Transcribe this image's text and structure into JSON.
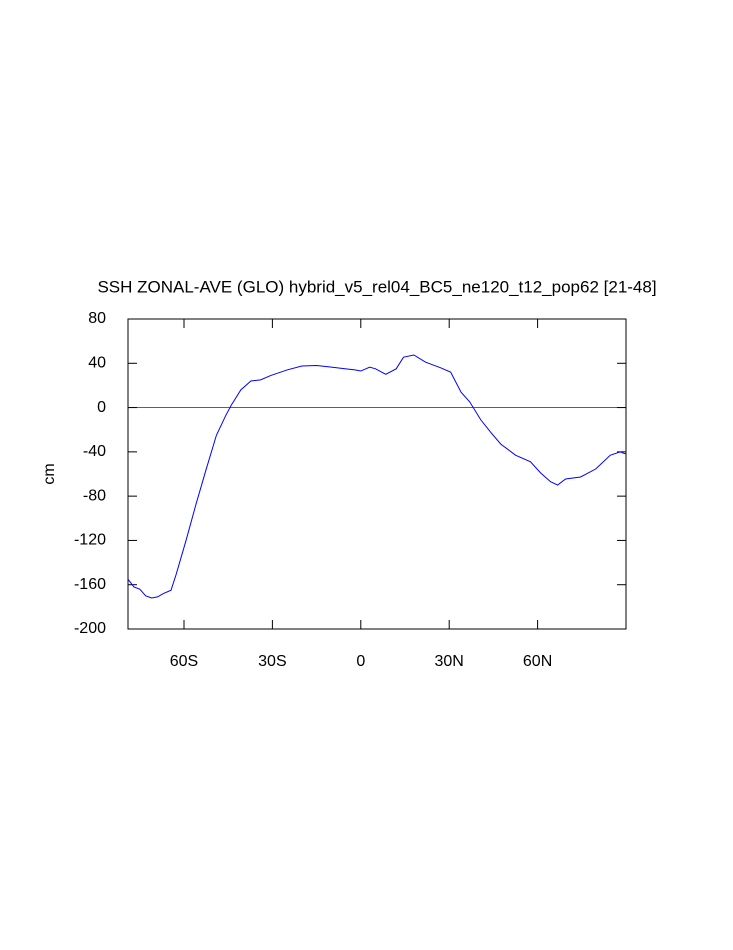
{
  "chart_data": {
    "type": "line",
    "title": "SSH ZONAL-AVE (GLO) hybrid_v5_rel04_BC5_ne120_t12_pop62 [21-48]",
    "ylabel": "cm",
    "xlim": [
      -79,
      90
    ],
    "ylim": [
      -200,
      80
    ],
    "xticks": [
      {
        "value": -60,
        "label": "60S"
      },
      {
        "value": -30,
        "label": "30S"
      },
      0,
      {
        "value": 30,
        "label": "30N"
      },
      {
        "value": 60,
        "label": "60N"
      }
    ],
    "yticks": [
      80,
      40,
      0,
      -40,
      -80,
      -120,
      -160,
      -200
    ],
    "hline": 0,
    "x": [
      -79,
      -77,
      -75,
      -73,
      -71,
      -69,
      -67,
      -64.4,
      -62.7,
      -59.3,
      -56,
      -52.5,
      -49,
      -45.8,
      -44,
      -40.7,
      -37.3,
      -34,
      -30.5,
      -25,
      -20,
      -15,
      -10,
      -5,
      -2,
      0,
      3,
      5,
      8.5,
      12,
      14.5,
      18,
      22,
      27,
      30.5,
      34,
      37,
      40.7,
      44,
      47.5,
      52.5,
      57.6,
      61,
      64.4,
      66.8,
      69.5,
      74.6,
      79.7,
      84.7,
      88,
      90
    ],
    "series": [
      {
        "name": "SSH",
        "color": "#0000ff",
        "values": [
          -155,
          -162,
          -164,
          -170,
          -172,
          -171,
          -168,
          -165,
          -151,
          -120,
          -88,
          -56,
          -25,
          -7,
          2,
          16,
          24,
          25,
          29,
          34,
          37.5,
          38,
          36.5,
          35,
          34,
          33,
          36.5,
          35,
          30,
          35,
          45.5,
          47.5,
          41,
          36,
          32,
          14,
          5,
          -11,
          -22,
          -33,
          -43,
          -49,
          -59,
          -67,
          -70,
          -64.5,
          -62.7,
          -55.5,
          -43,
          -40,
          -42
        ]
      }
    ]
  }
}
